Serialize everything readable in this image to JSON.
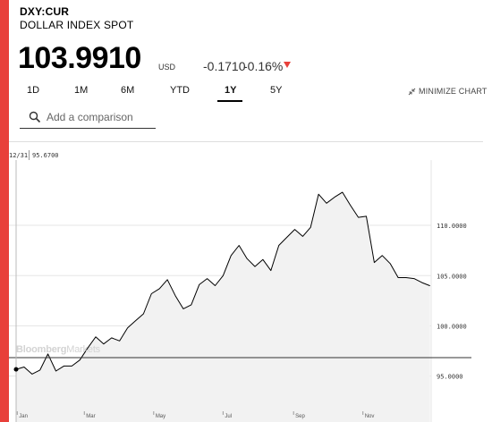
{
  "header": {
    "ticker": "DXY:CUR",
    "name": "DOLLAR INDEX SPOT",
    "price": "103.9910",
    "currency": "USD",
    "change": "-0.1710",
    "change_pct": "-0.16%"
  },
  "tabs": [
    {
      "label": "1D"
    },
    {
      "label": "1M"
    },
    {
      "label": "6M"
    },
    {
      "label": "YTD"
    },
    {
      "label": "1Y",
      "active": true
    },
    {
      "label": "5Y"
    }
  ],
  "minimize_label": "MINIMIZE CHART",
  "compare": {
    "placeholder": "Add a comparison"
  },
  "hover": {
    "date": "12/31",
    "value": "95.6700"
  },
  "watermark": {
    "brand": "Bloomberg",
    "suffix": "Markets"
  },
  "colors": {
    "accent": "#e8403a",
    "line": "#000000",
    "fill": "#f2f2f2"
  },
  "chart_data": {
    "type": "area",
    "x_tick_labels": [
      "Jan",
      "Mar",
      "May",
      "Jul",
      "Sep",
      "Nov"
    ],
    "y_tick_labels": [
      "95.0000",
      "100.0000",
      "105.0000",
      "110.0000"
    ],
    "ylim": [
      91.5,
      116.5
    ],
    "x": [
      "2021-12-31",
      "2022-01-07",
      "2022-01-14",
      "2022-01-21",
      "2022-01-28",
      "2022-02-04",
      "2022-02-11",
      "2022-02-18",
      "2022-02-25",
      "2022-03-04",
      "2022-03-11",
      "2022-03-18",
      "2022-03-25",
      "2022-04-01",
      "2022-04-08",
      "2022-04-15",
      "2022-04-22",
      "2022-04-29",
      "2022-05-06",
      "2022-05-13",
      "2022-05-20",
      "2022-05-27",
      "2022-06-03",
      "2022-06-10",
      "2022-06-17",
      "2022-06-24",
      "2022-07-01",
      "2022-07-08",
      "2022-07-15",
      "2022-07-22",
      "2022-07-29",
      "2022-08-05",
      "2022-08-12",
      "2022-08-19",
      "2022-08-26",
      "2022-09-02",
      "2022-09-09",
      "2022-09-16",
      "2022-09-23",
      "2022-09-30",
      "2022-10-07",
      "2022-10-14",
      "2022-10-21",
      "2022-10-28",
      "2022-11-04",
      "2022-11-11",
      "2022-11-18",
      "2022-11-25",
      "2022-12-02",
      "2022-12-09",
      "2022-12-16",
      "2022-12-23",
      "2022-12-30"
    ],
    "series": [
      {
        "values": [
          95.67,
          95.9,
          95.2,
          95.6,
          97.2,
          95.5,
          96.0,
          96.0,
          96.6,
          97.8,
          98.9,
          98.2,
          98.8,
          98.5,
          99.8,
          100.5,
          101.2,
          103.2,
          103.7,
          104.6,
          103.0,
          101.7,
          102.1,
          104.1,
          104.7,
          104.0,
          105.0,
          107.0,
          108.0,
          106.7,
          105.9,
          106.6,
          105.5,
          108.0,
          108.8,
          109.6,
          108.9,
          109.8,
          113.1,
          112.2,
          112.8,
          113.3,
          112.0,
          110.8,
          110.9,
          106.3,
          107.0,
          106.2,
          104.8,
          104.8,
          104.7,
          104.3,
          103.99
        ]
      }
    ]
  }
}
